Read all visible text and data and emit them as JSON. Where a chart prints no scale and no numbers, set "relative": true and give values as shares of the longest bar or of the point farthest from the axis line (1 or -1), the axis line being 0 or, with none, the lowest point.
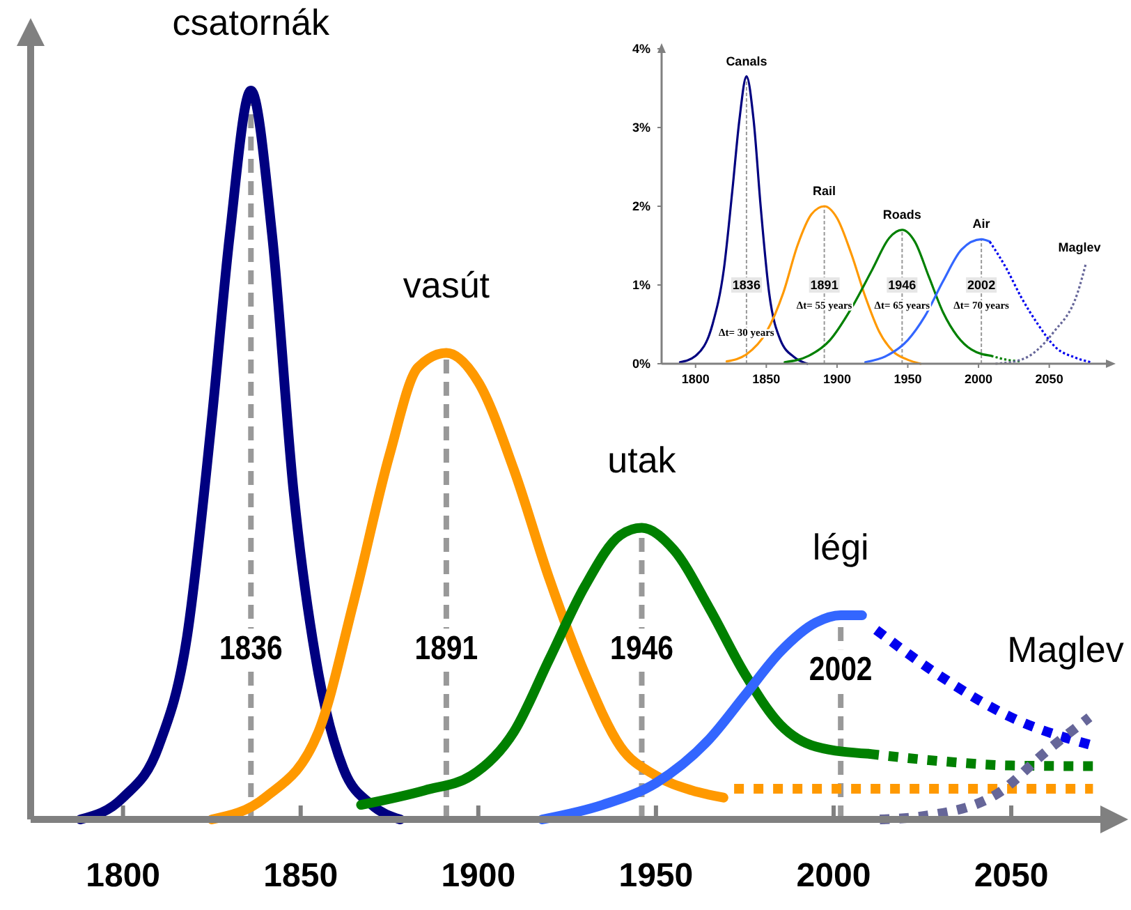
{
  "chart_data": [
    {
      "type": "line",
      "relative": true,
      "xlim": [
        1774,
        2079
      ],
      "xticks": [
        1800,
        1850,
        1900,
        1950,
        2000,
        2050
      ],
      "series": [
        {
          "name": "csatornák",
          "color": "#000080",
          "line_style": "solid",
          "x": [
            1788,
            1800,
            1810,
            1818,
            1825,
            1830,
            1836,
            1842,
            1848,
            1855,
            1862,
            1870,
            1878
          ],
          "values": [
            0,
            0.03,
            0.1,
            0.25,
            0.55,
            0.8,
            1,
            0.8,
            0.45,
            0.2,
            0.07,
            0.02,
            0
          ]
        },
        {
          "name": "vasút",
          "color": "#ff9900",
          "line_style": "solid",
          "x": [
            1825,
            1840,
            1855,
            1865,
            1875,
            1883,
            1891,
            1900,
            1910,
            1920,
            1930,
            1940,
            1950,
            1960,
            1969
          ],
          "values": [
            0,
            0.03,
            0.12,
            0.3,
            0.5,
            0.62,
            0.64,
            0.6,
            0.48,
            0.33,
            0.2,
            0.1,
            0.06,
            0.04,
            0.03
          ]
        },
        {
          "color": "#ff9900",
          "line_style": "dotted",
          "x": [
            1972,
            2000,
            2030,
            2073
          ],
          "values": [
            0.042,
            0.042,
            0.042,
            0.042
          ]
        },
        {
          "name": "utak",
          "color": "#008000",
          "line_style": "solid",
          "x": [
            1867,
            1885,
            1898,
            1910,
            1920,
            1930,
            1940,
            1946,
            1955,
            1965,
            1975,
            1985,
            1995,
            2010
          ],
          "values": [
            0.02,
            0.04,
            0.06,
            0.12,
            0.22,
            0.32,
            0.39,
            0.4,
            0.37,
            0.29,
            0.2,
            0.13,
            0.1,
            0.09
          ]
        },
        {
          "color": "#008000",
          "line_style": "dotted",
          "x": [
            2010,
            2030,
            2050,
            2074
          ],
          "values": [
            0.09,
            0.08,
            0.074,
            0.073
          ]
        },
        {
          "name": "légi",
          "color": "#3366ff",
          "line_style": "solid",
          "x": [
            1918,
            1935,
            1950,
            1965,
            1975,
            1985,
            1995,
            2002,
            2008
          ],
          "values": [
            0,
            0.02,
            0.05,
            0.11,
            0.17,
            0.23,
            0.27,
            0.28,
            0.28
          ]
        },
        {
          "color": "#0000ee",
          "line_style": "dotted",
          "x": [
            2012,
            2029,
            2050,
            2074
          ],
          "values": [
            0.26,
            0.2,
            0.14,
            0.1
          ]
        },
        {
          "name": "Maglev",
          "color": "#666699",
          "line_style": "dotted",
          "x": [
            2013,
            2026,
            2046,
            2060,
            2072
          ],
          "values": [
            0,
            0.005,
            0.035,
            0.094,
            0.14
          ]
        }
      ],
      "ref_lines": [
        {
          "axis": "x",
          "value": 1836,
          "label": "1836",
          "color": "#999999",
          "line_style": "dashed"
        },
        {
          "axis": "x",
          "value": 1891,
          "label": "1891",
          "color": "#999999",
          "line_style": "dashed"
        },
        {
          "axis": "x",
          "value": 1946,
          "label": "1946",
          "color": "#999999",
          "line_style": "dashed"
        },
        {
          "axis": "x",
          "value": 2002,
          "label": "2002",
          "color": "#999999",
          "line_style": "dashed"
        }
      ]
    },
    {
      "type": "line",
      "xlim": [
        1776,
        2093
      ],
      "ylim": [
        0,
        4
      ],
      "xticks": [
        1800,
        1850,
        1900,
        1950,
        2000,
        2050
      ],
      "yticks": [
        {
          "value": 0,
          "label": "0%"
        },
        {
          "value": 1,
          "label": "1%"
        },
        {
          "value": 2,
          "label": "2%"
        },
        {
          "value": 3,
          "label": "3%"
        },
        {
          "value": 4,
          "label": "4%"
        }
      ],
      "series": [
        {
          "name": "Canals",
          "color": "#000080",
          "line_style": "solid",
          "x": [
            1789,
            1800,
            1812,
            1820,
            1826,
            1831,
            1836,
            1841,
            1846,
            1852,
            1860,
            1870,
            1879
          ],
          "values": [
            0.02,
            0.1,
            0.5,
            1.2,
            2.2,
            3.1,
            3.65,
            3.1,
            2.0,
            0.9,
            0.3,
            0.08,
            0
          ]
        },
        {
          "name": "Rail",
          "color": "#ff9900",
          "line_style": "solid",
          "x": [
            1822,
            1836,
            1850,
            1862,
            1872,
            1882,
            1891,
            1900,
            1910,
            1920,
            1930,
            1940,
            1950,
            1959
          ],
          "values": [
            0.03,
            0.12,
            0.4,
            0.9,
            1.5,
            1.9,
            2.0,
            1.85,
            1.4,
            0.85,
            0.4,
            0.15,
            0.05,
            0
          ]
        },
        {
          "name": "Roads",
          "color": "#008000",
          "line_style": "solid",
          "x": [
            1863,
            1880,
            1895,
            1910,
            1925,
            1937,
            1946,
            1955,
            1965,
            1975,
            1985,
            1995,
            2009
          ],
          "values": [
            0.02,
            0.1,
            0.3,
            0.7,
            1.2,
            1.6,
            1.7,
            1.55,
            1.1,
            0.65,
            0.35,
            0.18,
            0.1
          ]
        },
        {
          "color": "#008000",
          "line_style": "dotted",
          "x": [
            2009,
            2020,
            2030
          ],
          "values": [
            0.1,
            0.05,
            0.03
          ]
        },
        {
          "name": "Air",
          "color": "#3366ff",
          "line_style": "solid",
          "x": [
            1920,
            1935,
            1950,
            1962,
            1975,
            1988,
            2002,
            2008
          ],
          "values": [
            0.02,
            0.1,
            0.3,
            0.6,
            1.05,
            1.45,
            1.58,
            1.55
          ]
        },
        {
          "color": "#0000ee",
          "line_style": "dotted",
          "x": [
            2008,
            2020,
            2030,
            2042,
            2055,
            2068,
            2079
          ],
          "values": [
            1.55,
            1.2,
            0.85,
            0.5,
            0.2,
            0.08,
            0.02
          ]
        },
        {
          "name": "Maglev",
          "color": "#666699",
          "line_style": "dotted",
          "x": [
            2012,
            2030,
            2053,
            2070,
            2076
          ],
          "values": [
            0,
            0.05,
            0.4,
            0.9,
            1.28
          ]
        }
      ],
      "ref_lines": [
        {
          "axis": "x",
          "value": 1836,
          "label": "1836",
          "color": "#999999",
          "line_style": "dashed"
        },
        {
          "axis": "x",
          "value": 1891,
          "label": "1891",
          "color": "#999999",
          "line_style": "dashed"
        },
        {
          "axis": "x",
          "value": 1946,
          "label": "1946",
          "color": "#999999",
          "line_style": "dashed"
        },
        {
          "axis": "x",
          "value": 2002,
          "label": "2002",
          "color": "#999999",
          "line_style": "dashed"
        }
      ],
      "annotations": [
        {
          "text": "Δt= 30 years",
          "x": 1836,
          "y": 0.35
        },
        {
          "text": "Δt= 55 years",
          "x": 1891,
          "y": 0.7
        },
        {
          "text": "Δt= 65 years",
          "x": 1946,
          "y": 0.7
        },
        {
          "text": "Δt= 70 years",
          "x": 2002,
          "y": 0.7
        }
      ]
    }
  ]
}
